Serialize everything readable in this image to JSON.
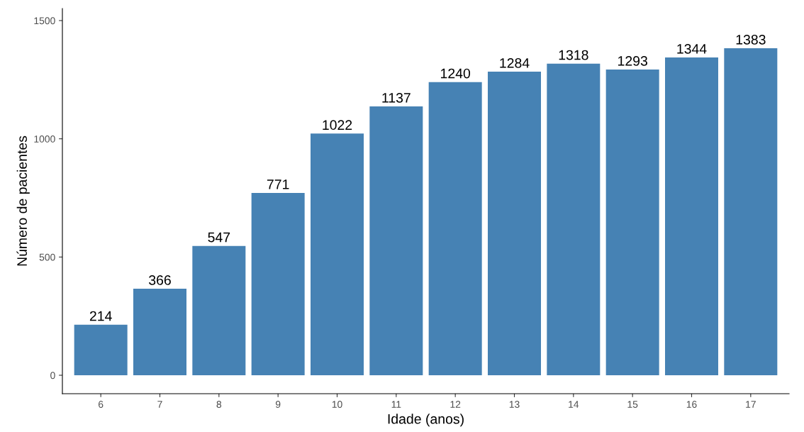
{
  "chart_data": {
    "type": "bar",
    "xlabel": "Idade (anos)",
    "ylabel": "Número de pacientes",
    "categories": [
      "6",
      "7",
      "8",
      "9",
      "10",
      "11",
      "12",
      "13",
      "14",
      "15",
      "16",
      "17"
    ],
    "values": [
      214,
      366,
      547,
      771,
      1022,
      1137,
      1240,
      1284,
      1318,
      1293,
      1344,
      1383
    ],
    "color": "#4682b4",
    "ylim": [
      -78,
      1551
    ],
    "yticks": [
      0,
      500,
      1000,
      1500
    ],
    "grid": false,
    "data_labels": true
  }
}
